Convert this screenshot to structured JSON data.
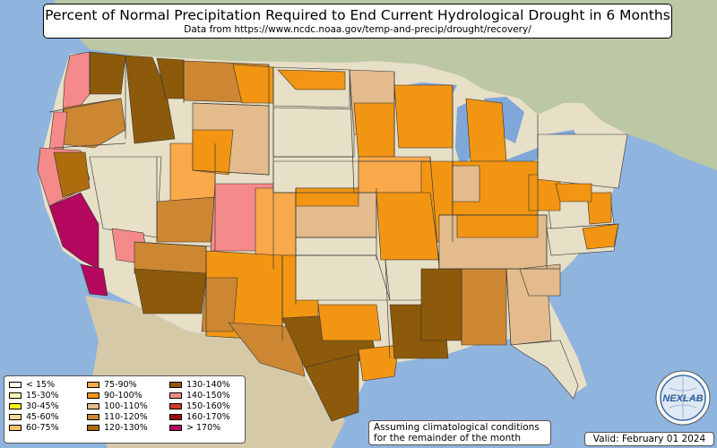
{
  "title": "Percent of Normal Precipitation Required to End Current Hydrological Drought in 6 Months",
  "subtitle": "Data from https://www.ncdc.noaa.gov/temp-and-precip/drought/recovery/",
  "legend": {
    "columns": [
      [
        {
          "label": "< 15%",
          "color": "#fffde8"
        },
        {
          "label": "15-30%",
          "color": "#fdf5b5"
        },
        {
          "label": "30-45%",
          "color": "#f7f21a"
        },
        {
          "label": "45-60%",
          "color": "#fbd79a"
        },
        {
          "label": "60-75%",
          "color": "#fbbf6a"
        }
      ],
      [
        {
          "label": "75-90%",
          "color": "#f9a94a"
        },
        {
          "label": "90-100%",
          "color": "#f29512"
        },
        {
          "label": "100-110%",
          "color": "#e3bb8c"
        },
        {
          "label": "110-120%",
          "color": "#cd8732"
        },
        {
          "label": "120-130%",
          "color": "#ad6d0c"
        }
      ],
      [
        {
          "label": "130-140%",
          "color": "#8c5a0a"
        },
        {
          "label": "140-150%",
          "color": "#f58a8a"
        },
        {
          "label": "150-160%",
          "color": "#d23a2c"
        },
        {
          "label": "160-170%",
          "color": "#a00c0c"
        },
        {
          "label": "> 170%",
          "color": "#b3085e"
        }
      ]
    ]
  },
  "note": {
    "line1": "Assuming climatological conditions",
    "line2": "for the remainder of the month"
  },
  "valid": "Valid: February 01 2024",
  "logo": {
    "text": "NEXLAB"
  },
  "colors": {
    "ocean": "#8fb4dd",
    "land": "#e7dfc6",
    "canada": "#bcc7a4",
    "mexico": "#d6c9a8",
    "lakes": "#7fa7d9",
    "state_border": "#3a3a3a"
  }
}
